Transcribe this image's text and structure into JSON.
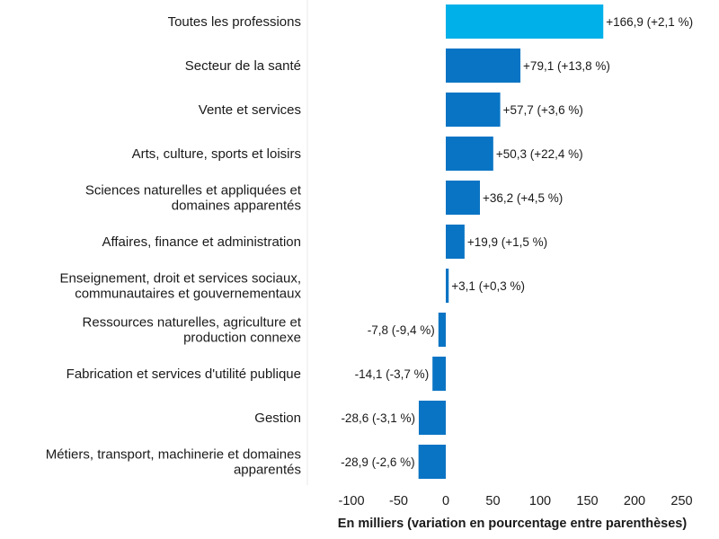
{
  "chart_data": {
    "type": "bar",
    "orientation": "horizontal",
    "xlabel": "En milliers (variation en pourcentage entre parenthèses)",
    "xlim": [
      -150,
      300
    ],
    "xticks": [
      -100,
      -50,
      0,
      50,
      100,
      150,
      200,
      250
    ],
    "xtick_labels": [
      "-100",
      "-50",
      "0",
      "50",
      "100",
      "150",
      "200",
      "250"
    ],
    "categories": [
      [
        "Toutes les professions"
      ],
      [
        "Secteur de la santé"
      ],
      [
        "Vente et services"
      ],
      [
        "Arts, culture, sports et loisirs"
      ],
      [
        "Sciences naturelles et appliquées et",
        "domaines apparentés"
      ],
      [
        "Affaires, finance et administration"
      ],
      [
        "Enseignement, droit et services sociaux,",
        "communautaires et gouvernementaux"
      ],
      [
        "Ressources naturelles, agriculture et",
        "production connexe"
      ],
      [
        "Fabrication et services d'utilité publique"
      ],
      [
        "Gestion"
      ],
      [
        "Métiers, transport, machinerie et domaines",
        "apparentés"
      ]
    ],
    "values": [
      166.9,
      79.1,
      57.7,
      50.3,
      36.2,
      19.9,
      3.1,
      -7.8,
      -14.1,
      -28.6,
      -28.9
    ],
    "data_labels": [
      "+166,9 (+2,1 %)",
      "+79,1 (+13,8 %)",
      "+57,7 (+3,6 %)",
      "+50,3 (+22,4 %)",
      "+36,2 (+4,5 %)",
      "+19,9 (+1,5 %)",
      "+3,1 (+0,3 %)",
      "-7,8 (-9,4 %)",
      "-14,1 (-3,7 %)",
      "-28,6 (-3,1 %)",
      "-28,9 (-2,6 %)"
    ],
    "colors": {
      "total": "#00b0e8",
      "default": "#0a74c4",
      "divider": "#e8e8e8"
    },
    "grid": false
  }
}
